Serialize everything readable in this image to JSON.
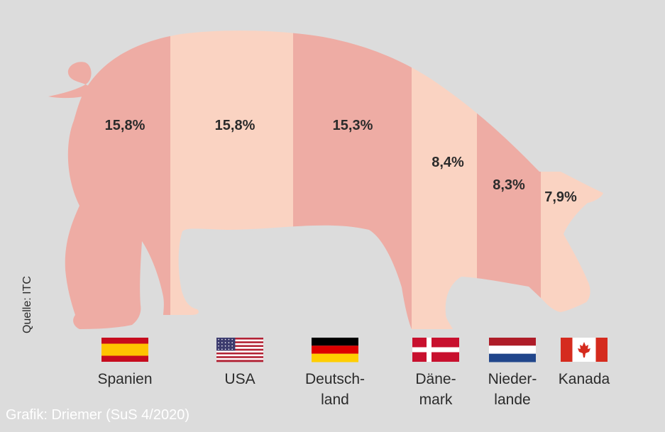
{
  "chart_data": {
    "type": "bar",
    "categories": [
      "Spanien",
      "USA",
      "Deutschland",
      "Dänemark",
      "Niederlande",
      "Kanada"
    ],
    "category_labels": [
      "Spanien",
      "USA",
      "Deutsch-\nland",
      "Däne-\nmark",
      "Nieder-\nlande",
      "Kanada"
    ],
    "values": [
      15.8,
      15.8,
      15.3,
      8.4,
      8.3,
      7.9
    ],
    "value_labels": [
      "15,8%",
      "15,8%",
      "15,3%",
      "8,4%",
      "8,3%",
      "7,9%"
    ],
    "title": "",
    "source": "Quelle: ITC",
    "credit": "Grafik: Driemer (SuS 4/2020)",
    "icons": [
      "flag-spain-icon",
      "flag-usa-icon",
      "flag-germany-icon",
      "flag-denmark-icon",
      "flag-netherlands-icon",
      "flag-canada-icon"
    ]
  },
  "colors": {
    "background": "#dcdcdc",
    "segment_dark": "#eeaca4",
    "segment_light": "#fad3c2",
    "label_text": "#2b2b2b"
  }
}
